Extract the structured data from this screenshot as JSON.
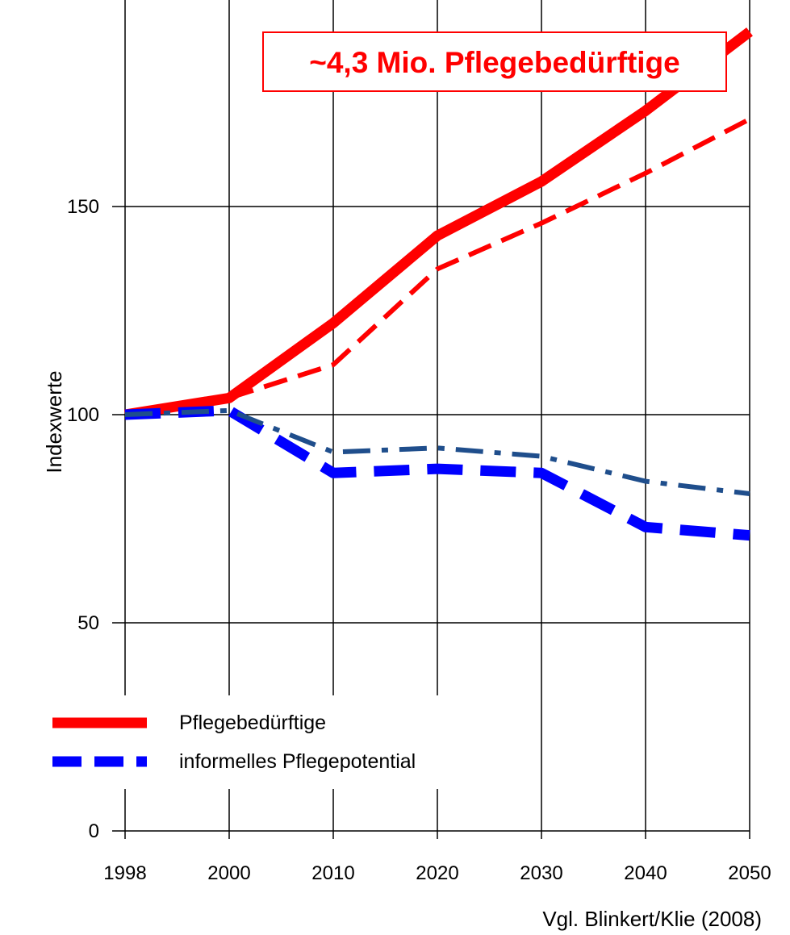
{
  "chart_data": {
    "type": "line",
    "ylabel": "Indexwerte",
    "xlabel": "",
    "categories": [
      "1998",
      "2000",
      "2010",
      "2020",
      "2030",
      "2040",
      "2050"
    ],
    "yticks": [
      "0",
      "50",
      "100",
      "150"
    ],
    "ylim": [
      0,
      185
    ],
    "grid": true,
    "legend_position": "bottom-left",
    "series": [
      {
        "name": "Pflegebedürftige",
        "values": [
          100,
          104,
          122,
          143,
          156,
          173,
          192
        ],
        "color": "#ff0000",
        "style": "solid-thick"
      },
      {
        "name": "",
        "values": [
          100,
          104,
          112,
          135,
          146,
          158,
          171
        ],
        "color": "#ff0000",
        "style": "dashed"
      },
      {
        "name": "informelles Pflegepotential",
        "values": [
          100,
          101,
          86,
          87,
          86,
          73,
          71
        ],
        "color": "#0000ff",
        "style": "dashed-thick"
      },
      {
        "name": "",
        "values": [
          100,
          101,
          91,
          92,
          90,
          84,
          81
        ],
        "color": "#1f4e8c",
        "style": "dash-dot"
      }
    ],
    "annotation": "~4,3 Mio. Pflegebedürftige",
    "source": "Vgl. Blinkert/Klie (2008)"
  }
}
